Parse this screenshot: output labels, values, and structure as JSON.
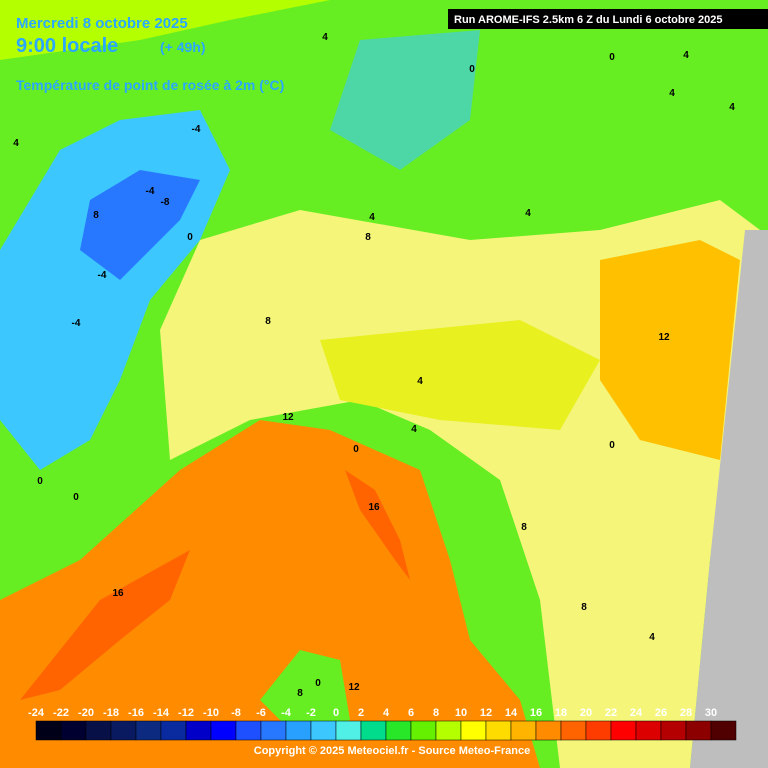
{
  "header": {
    "date": "Mercredi 8 octobre 2025",
    "time": "9:00 locale",
    "lead": "(+ 49h)",
    "subtitle": "Température de point de rosée à 2m (°C)",
    "run": "Run AROME-IFS 2.5km 6 Z du Lundi 6 octobre 2025"
  },
  "contour_labels": [
    "4",
    "0",
    "0",
    "4",
    "4",
    "-4",
    "-8",
    "8",
    "-4",
    "0",
    "-4",
    "-4",
    "8",
    "4",
    "4",
    "4",
    "8",
    "12",
    "12",
    "16",
    "16",
    "0",
    "0",
    "0",
    "8",
    "8",
    "8",
    "4",
    "0",
    "12",
    "4",
    "4",
    "0",
    "4"
  ],
  "legend": {
    "ticks": [
      -24,
      -22,
      -20,
      -18,
      -16,
      -14,
      -12,
      -10,
      -8,
      -6,
      -4,
      -2,
      0,
      2,
      4,
      6,
      8,
      10,
      12,
      14,
      16,
      18,
      20,
      22,
      24,
      26,
      28,
      30
    ],
    "colors": [
      "#000018",
      "#000030",
      "#081048",
      "#0a1a60",
      "#0b2a80",
      "#0a2aa0",
      "#0000c8",
      "#0000ff",
      "#1e50ff",
      "#2878ff",
      "#28a0ff",
      "#3cc8ff",
      "#50f0e6",
      "#00dc8c",
      "#28e628",
      "#64f000",
      "#b4ff00",
      "#ffff00",
      "#ffdc00",
      "#ffb400",
      "#ff8c00",
      "#ff6400",
      "#ff3c00",
      "#ff0000",
      "#dc0000",
      "#b40000",
      "#8c0000",
      "#500000"
    ]
  },
  "copyright": "Copyright © 2025 Meteociel.fr - Source Meteo-France"
}
